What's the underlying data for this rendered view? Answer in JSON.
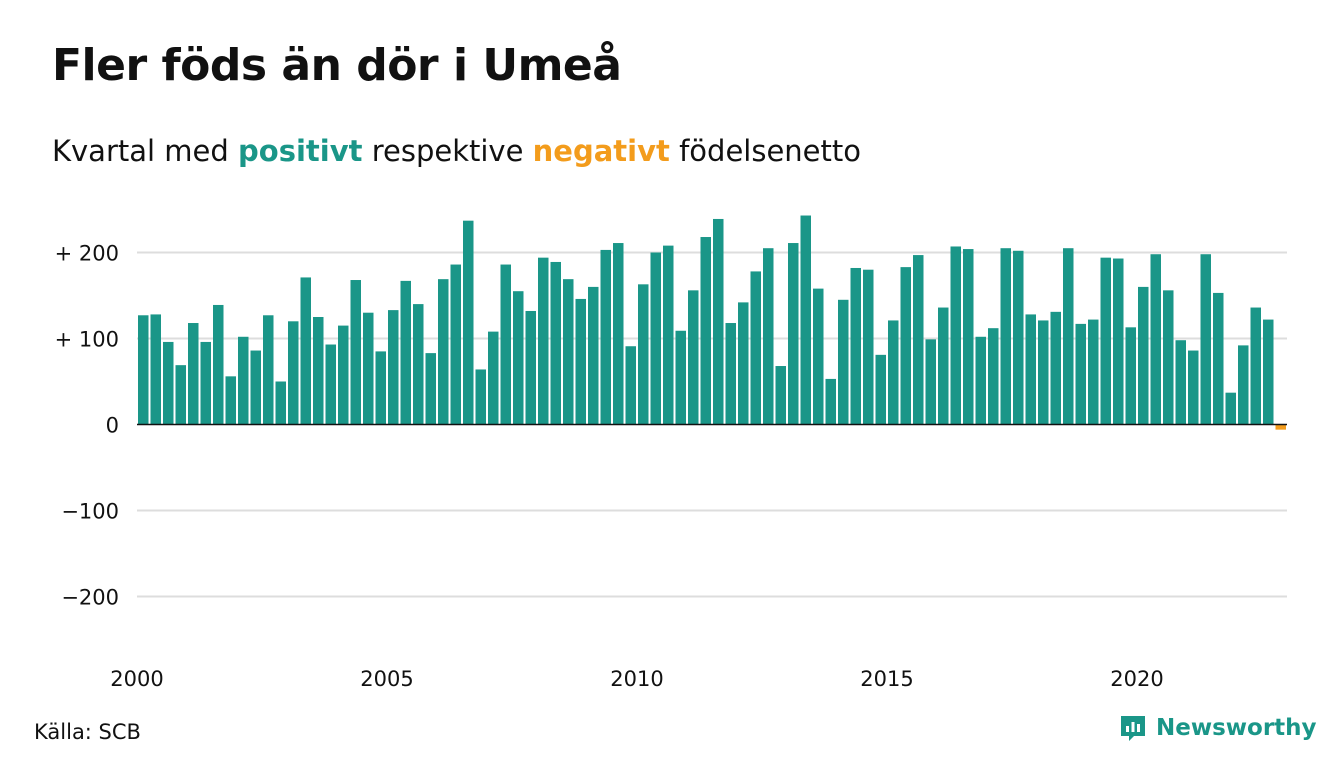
{
  "title": "Fler föds än dör i Umeå",
  "subtitle": {
    "prefix": "Kvartal med",
    "positive": "positivt",
    "middle": "respektive",
    "negative": "negativt",
    "suffix": "födelsenetto"
  },
  "source": "Källa: SCB",
  "brand": {
    "name": "Newsworthy",
    "icon": "newsworthy-logo-icon"
  },
  "colors": {
    "positive": "#1a9688",
    "negative": "#f39c1c",
    "grid": "#dddddd",
    "zero_line": "#111111"
  },
  "chart_data": {
    "type": "bar",
    "title": "Fler föds än dör i Umeå",
    "subtitle": "Kvartal med positivt respektive negativt födelsenetto",
    "xlabel": "",
    "ylabel": "",
    "x_start": "2000 Q1",
    "x_ticks": [
      "2000",
      "2005",
      "2010",
      "2015",
      "2020"
    ],
    "x_tick_years": [
      2000,
      2005,
      2010,
      2015,
      2020
    ],
    "y_ticks": [
      200,
      100,
      0,
      -100,
      -200
    ],
    "y_tick_labels": [
      "+ 200",
      "+ 100",
      "0",
      "−100",
      "−200"
    ],
    "ylim": [
      -240,
      240
    ],
    "grid": true,
    "series": [
      {
        "values": [
          127,
          128,
          96,
          69,
          118,
          96,
          139,
          56,
          102,
          86,
          127,
          50,
          120,
          171,
          125,
          93,
          115,
          168,
          130,
          85,
          133,
          167,
          140,
          83,
          169,
          186,
          237,
          64,
          108,
          186,
          155,
          132,
          194,
          189,
          169,
          146,
          160,
          203,
          211,
          91,
          163,
          200,
          208,
          109,
          156,
          218,
          239,
          118,
          142,
          178,
          205,
          68,
          211,
          243,
          158,
          53,
          145,
          182,
          180,
          81,
          121,
          183,
          197,
          99,
          136,
          207,
          204,
          102,
          112,
          205,
          202,
          128,
          121,
          131,
          205,
          117,
          122,
          194,
          193,
          113,
          160,
          198,
          156,
          98,
          86,
          198,
          153,
          37,
          92,
          136,
          122,
          -6
        ]
      }
    ]
  }
}
